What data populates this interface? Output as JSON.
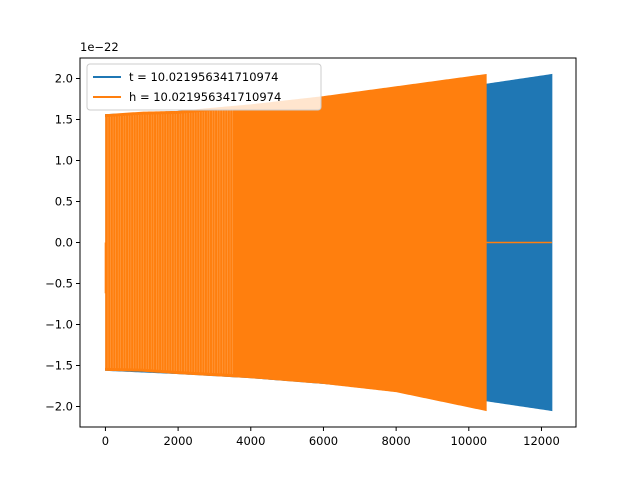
{
  "chart_data": {
    "type": "line",
    "title": "",
    "xlabel": "",
    "ylabel": "",
    "y_offset_text": "1e−22",
    "xlim": [
      -700,
      12950
    ],
    "ylim": [
      -2.25,
      2.25
    ],
    "x_ticks": [
      0,
      2000,
      4000,
      6000,
      8000,
      10000,
      12000
    ],
    "x_tick_labels": [
      "0",
      "2000",
      "4000",
      "6000",
      "8000",
      "10000",
      "12000"
    ],
    "y_ticks": [
      -2.0,
      -1.5,
      -1.0,
      -0.5,
      0.0,
      0.5,
      1.0,
      1.5,
      2.0
    ],
    "y_tick_labels": [
      "−2.0",
      "−1.5",
      "−1.0",
      "−0.5",
      "0.0",
      "0.5",
      "1.0",
      "1.5",
      "2.0"
    ],
    "grid": false,
    "legend_position": "top-left",
    "series": [
      {
        "name": "t = 10.021956341710974",
        "color": "#1f77b4",
        "kind": "oscillation_envelope",
        "x_start": 0,
        "x_end": 12288,
        "envelope_x": [
          0,
          2000,
          4000,
          6000,
          8000,
          10000,
          12288
        ],
        "envelope_upper": [
          1.56,
          1.6,
          1.65,
          1.72,
          1.8,
          1.9,
          2.05
        ],
        "envelope_lower": [
          -1.56,
          -1.6,
          -1.65,
          -1.72,
          -1.8,
          -1.9,
          -2.05
        ]
      },
      {
        "name": "h = 10.021956341710974",
        "color": "#ff7f0e",
        "kind": "oscillation_envelope",
        "x_start": 0,
        "x_end": 10480,
        "envelope_x": [
          0,
          1000,
          2000,
          4000,
          6000,
          8000,
          10480
        ],
        "envelope_upper": [
          1.56,
          1.59,
          1.6,
          1.68,
          1.78,
          1.9,
          2.05
        ],
        "envelope_lower": [
          -1.56,
          -1.57,
          -1.6,
          -1.65,
          -1.72,
          -1.82,
          -2.05
        ],
        "zero_tail_x": [
          10480,
          12288
        ],
        "zero_tail_y": [
          0,
          0
        ]
      }
    ]
  }
}
